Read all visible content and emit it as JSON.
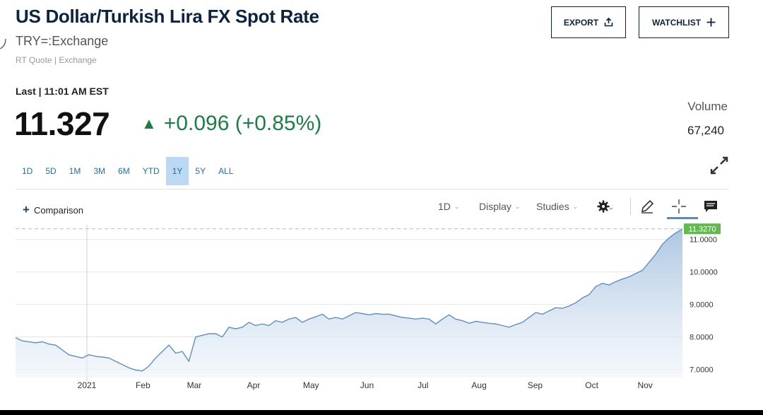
{
  "header": {
    "title": "US Dollar/Turkish Lira FX Spot Rate",
    "symbol": "TRY=:Exchange",
    "quote_source": "RT Quote | Exchange"
  },
  "actions": {
    "export_label": "EXPORT",
    "watchlist_label": "WATCHLIST"
  },
  "quote": {
    "last_time": "Last | 11:01 AM EST",
    "price": "11.327",
    "change": "+0.096 (+0.85%)",
    "change_color": "#1a7f45"
  },
  "volume": {
    "label": "Volume",
    "value": "67,240"
  },
  "ranges": [
    {
      "label": "1D"
    },
    {
      "label": "5D"
    },
    {
      "label": "1M"
    },
    {
      "label": "3M"
    },
    {
      "label": "6M"
    },
    {
      "label": "YTD"
    },
    {
      "label": "1Y",
      "active": true
    },
    {
      "label": "5Y"
    },
    {
      "label": "ALL"
    }
  ],
  "toolbar": {
    "comparison_label": "Comparison",
    "interval_label": "1D",
    "display_label": "Display",
    "studies_label": "Studies",
    "icons": [
      "gear-icon",
      "pencil-icon",
      "crosshair-icon",
      "comment-icon",
      "expand-icon",
      "share-icon",
      "plus-icon"
    ]
  },
  "colors": {
    "brand_navy": "#0c2340",
    "link_blue": "#1f6fb0",
    "positive_green": "#1a7f45",
    "active_range_bg": "#bcd9f3",
    "line_color": "#5f8fbf"
  },
  "chart_data": {
    "type": "area",
    "x_labels": [
      "2021",
      "Feb",
      "Mar",
      "Apr",
      "May",
      "Jun",
      "Jul",
      "Aug",
      "Sep",
      "Oct",
      "Nov"
    ],
    "y_ticks": [
      "7.0000",
      "8.0000",
      "9.0000",
      "10.0000",
      "11.0000"
    ],
    "ylim": [
      6.75,
      11.45
    ],
    "last_value_label": "11.3270",
    "last_value": 11.327,
    "grid": true,
    "x": [
      0,
      0.01,
      0.02,
      0.03,
      0.04,
      0.05,
      0.06,
      0.07,
      0.08,
      0.09,
      0.1,
      0.11,
      0.12,
      0.13,
      0.14,
      0.15,
      0.16,
      0.17,
      0.18,
      0.19,
      0.2,
      0.21,
      0.22,
      0.23,
      0.24,
      0.25,
      0.26,
      0.27,
      0.28,
      0.29,
      0.3,
      0.31,
      0.315,
      0.32,
      0.33,
      0.34,
      0.35,
      0.36,
      0.37,
      0.38,
      0.39,
      0.4,
      0.41,
      0.42,
      0.43,
      0.44,
      0.45,
      0.46,
      0.47,
      0.48,
      0.49,
      0.5,
      0.51,
      0.52,
      0.53,
      0.54,
      0.55,
      0.56,
      0.57,
      0.58,
      0.59,
      0.6,
      0.61,
      0.62,
      0.63,
      0.64,
      0.65,
      0.66,
      0.67,
      0.68,
      0.69,
      0.7,
      0.71,
      0.72,
      0.73,
      0.74,
      0.75,
      0.76,
      0.77,
      0.78,
      0.79,
      0.8,
      0.81,
      0.82,
      0.83,
      0.84,
      0.85,
      0.86,
      0.87,
      0.88,
      0.89,
      0.9,
      0.91,
      0.92,
      0.93,
      0.94,
      0.95,
      0.96,
      0.97,
      0.98,
      0.99,
      1.0
    ],
    "y": [
      7.98,
      7.88,
      7.85,
      7.82,
      7.85,
      7.78,
      7.75,
      7.6,
      7.45,
      7.4,
      7.35,
      7.45,
      7.4,
      7.38,
      7.35,
      7.25,
      7.15,
      7.05,
      6.98,
      6.95,
      7.1,
      7.35,
      7.55,
      7.75,
      7.5,
      7.55,
      7.25,
      8.0,
      8.05,
      8.1,
      8.1,
      8.0,
      8.15,
      8.3,
      8.25,
      8.3,
      8.45,
      8.35,
      8.4,
      8.35,
      8.5,
      8.45,
      8.55,
      8.6,
      8.45,
      8.55,
      8.62,
      8.7,
      8.55,
      8.6,
      8.55,
      8.65,
      8.75,
      8.72,
      8.68,
      8.72,
      8.7,
      8.7,
      8.65,
      8.6,
      8.58,
      8.55,
      8.58,
      8.55,
      8.4,
      8.55,
      8.68,
      8.55,
      8.5,
      8.42,
      8.48,
      8.45,
      8.42,
      8.4,
      8.35,
      8.3,
      8.38,
      8.45,
      8.6,
      8.75,
      8.7,
      8.8,
      8.9,
      8.88,
      8.95,
      9.05,
      9.2,
      9.3,
      9.55,
      9.65,
      9.6,
      9.7,
      9.78,
      9.85,
      9.95,
      10.05,
      10.3,
      10.55,
      10.85,
      11.05,
      11.2,
      11.327
    ]
  }
}
